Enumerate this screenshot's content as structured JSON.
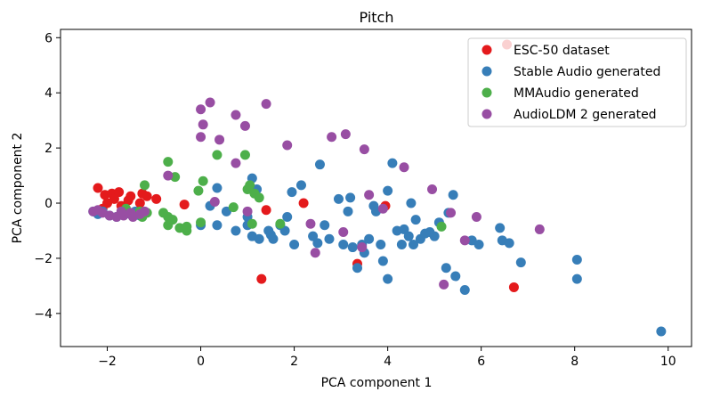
{
  "chart_data": {
    "type": "scatter",
    "title": "Pitch",
    "xlabel": "PCA component 1",
    "ylabel": "PCA component 2",
    "xlim": [
      -3.0,
      10.5
    ],
    "ylim": [
      -5.2,
      6.3
    ],
    "xticks": [
      -2,
      0,
      2,
      4,
      6,
      8,
      10
    ],
    "yticks": [
      -4,
      -2,
      0,
      2,
      4,
      6
    ],
    "xtick_labels": [
      "−2",
      "0",
      "2",
      "4",
      "6",
      "8",
      "10"
    ],
    "ytick_labels": [
      "−4",
      "−2",
      "0",
      "2",
      "4",
      "6"
    ],
    "grid": false,
    "legend_position": "top-right",
    "series": [
      {
        "name": "ESC-50 dataset",
        "color": "#e41a1c",
        "points": [
          [
            6.55,
            5.75
          ],
          [
            -2.2,
            0.55
          ],
          [
            -2.05,
            0.3
          ],
          [
            -1.9,
            0.35
          ],
          [
            -1.75,
            0.4
          ],
          [
            -1.85,
            0.15
          ],
          [
            -1.5,
            0.25
          ],
          [
            -1.25,
            0.35
          ],
          [
            -1.15,
            0.25
          ],
          [
            -0.95,
            0.15
          ],
          [
            -1.3,
            0.0
          ],
          [
            -1.55,
            0.1
          ],
          [
            -2.0,
            0.0
          ],
          [
            -0.35,
            -0.05
          ],
          [
            1.4,
            -0.25
          ],
          [
            2.2,
            0.0
          ],
          [
            3.95,
            -0.1
          ],
          [
            3.35,
            -2.2
          ],
          [
            1.3,
            -2.75
          ],
          [
            6.7,
            -3.05
          ],
          [
            -2.1,
            -0.2
          ],
          [
            -1.7,
            -0.1
          ]
        ]
      },
      {
        "name": "Stable Audio generated",
        "color": "#377eb8",
        "points": [
          [
            -2.3,
            -0.3
          ],
          [
            -2.2,
            -0.4
          ],
          [
            -2.1,
            -0.3
          ],
          [
            -1.95,
            -0.45
          ],
          [
            -1.8,
            -0.5
          ],
          [
            -1.65,
            -0.35
          ],
          [
            -1.5,
            -0.4
          ],
          [
            -1.4,
            -0.3
          ],
          [
            -1.3,
            -0.45
          ],
          [
            0.0,
            -0.8
          ],
          [
            0.2,
            -0.1
          ],
          [
            0.35,
            0.55
          ],
          [
            0.35,
            -0.8
          ],
          [
            0.75,
            -1.0
          ],
          [
            1.0,
            -0.8
          ],
          [
            1.1,
            -1.2
          ],
          [
            1.1,
            0.9
          ],
          [
            1.2,
            0.5
          ],
          [
            1.25,
            -1.3
          ],
          [
            1.45,
            -1.0
          ],
          [
            1.5,
            -1.15
          ],
          [
            1.55,
            -1.3
          ],
          [
            1.7,
            -0.8
          ],
          [
            1.8,
            -1.0
          ],
          [
            1.85,
            -0.5
          ],
          [
            1.95,
            0.4
          ],
          [
            2.0,
            -1.5
          ],
          [
            2.15,
            0.65
          ],
          [
            2.4,
            -1.2
          ],
          [
            2.5,
            -1.45
          ],
          [
            2.55,
            1.4
          ],
          [
            2.65,
            -0.8
          ],
          [
            2.75,
            -1.3
          ],
          [
            2.95,
            0.15
          ],
          [
            3.05,
            -1.5
          ],
          [
            3.15,
            -0.3
          ],
          [
            3.25,
            -1.6
          ],
          [
            3.35,
            -2.35
          ],
          [
            3.45,
            -1.5
          ],
          [
            3.5,
            -1.8
          ],
          [
            3.6,
            -1.3
          ],
          [
            3.7,
            -0.1
          ],
          [
            3.75,
            -0.3
          ],
          [
            3.85,
            -1.5
          ],
          [
            3.9,
            -2.1
          ],
          [
            4.0,
            0.45
          ],
          [
            4.0,
            -2.75
          ],
          [
            4.1,
            1.45
          ],
          [
            4.2,
            -1.0
          ],
          [
            4.3,
            -1.5
          ],
          [
            4.35,
            -0.95
          ],
          [
            4.45,
            -1.2
          ],
          [
            4.5,
            0.0
          ],
          [
            4.55,
            -1.5
          ],
          [
            4.6,
            -0.6
          ],
          [
            4.7,
            -1.3
          ],
          [
            4.8,
            -1.1
          ],
          [
            4.9,
            -1.05
          ],
          [
            5.0,
            -1.2
          ],
          [
            5.1,
            -0.7
          ],
          [
            5.25,
            -2.35
          ],
          [
            5.3,
            -0.35
          ],
          [
            5.4,
            0.3
          ],
          [
            5.45,
            -2.65
          ],
          [
            5.65,
            -3.15
          ],
          [
            5.8,
            -1.35
          ],
          [
            5.95,
            -1.5
          ],
          [
            6.4,
            -0.9
          ],
          [
            6.45,
            -1.35
          ],
          [
            6.6,
            -1.45
          ],
          [
            6.85,
            -2.15
          ],
          [
            8.05,
            -2.05
          ],
          [
            8.05,
            -2.75
          ],
          [
            9.85,
            -4.65
          ],
          [
            0.55,
            -0.3
          ],
          [
            1.0,
            -0.5
          ],
          [
            3.2,
            0.2
          ]
        ]
      },
      {
        "name": "MMAudio generated",
        "color": "#4daf4a",
        "points": [
          [
            -1.2,
            0.65
          ],
          [
            -1.6,
            -0.2
          ],
          [
            -1.3,
            -0.3
          ],
          [
            -1.25,
            -0.5
          ],
          [
            -1.15,
            -0.35
          ],
          [
            -0.7,
            1.5
          ],
          [
            -0.7,
            -0.5
          ],
          [
            -0.7,
            -0.8
          ],
          [
            -0.6,
            -0.6
          ],
          [
            -0.55,
            0.95
          ],
          [
            -0.45,
            -0.9
          ],
          [
            -0.3,
            -1.0
          ],
          [
            -0.3,
            -0.85
          ],
          [
            -0.05,
            0.45
          ],
          [
            0.0,
            -0.7
          ],
          [
            0.05,
            0.8
          ],
          [
            0.35,
            1.75
          ],
          [
            0.7,
            -0.15
          ],
          [
            0.95,
            1.75
          ],
          [
            1.0,
            0.5
          ],
          [
            1.05,
            0.65
          ],
          [
            1.1,
            -0.75
          ],
          [
            1.15,
            0.35
          ],
          [
            1.25,
            0.2
          ],
          [
            1.7,
            -0.75
          ],
          [
            5.15,
            -0.85
          ],
          [
            -0.8,
            -0.35
          ]
        ]
      },
      {
        "name": "AudioLDM 2 generated",
        "color": "#984ea3",
        "points": [
          [
            -2.3,
            -0.3
          ],
          [
            -2.1,
            -0.35
          ],
          [
            -1.95,
            -0.45
          ],
          [
            -1.8,
            -0.5
          ],
          [
            -1.65,
            -0.45
          ],
          [
            -1.5,
            -0.35
          ],
          [
            -1.45,
            -0.5
          ],
          [
            -1.3,
            -0.4
          ],
          [
            -1.2,
            -0.3
          ],
          [
            -2.2,
            -0.25
          ],
          [
            -1.7,
            -0.3
          ],
          [
            -0.7,
            1.0
          ],
          [
            0.0,
            3.4
          ],
          [
            0.05,
            2.85
          ],
          [
            0.0,
            2.4
          ],
          [
            0.2,
            3.65
          ],
          [
            0.3,
            0.05
          ],
          [
            0.4,
            2.3
          ],
          [
            0.75,
            1.45
          ],
          [
            0.75,
            3.2
          ],
          [
            0.95,
            2.8
          ],
          [
            1.0,
            -0.3
          ],
          [
            1.4,
            3.6
          ],
          [
            1.85,
            2.1
          ],
          [
            2.35,
            -0.75
          ],
          [
            2.45,
            -1.8
          ],
          [
            2.8,
            2.4
          ],
          [
            3.1,
            2.5
          ],
          [
            3.05,
            -1.05
          ],
          [
            3.45,
            -1.6
          ],
          [
            3.5,
            1.95
          ],
          [
            3.6,
            0.3
          ],
          [
            3.9,
            -0.2
          ],
          [
            4.35,
            1.3
          ],
          [
            4.95,
            0.5
          ],
          [
            5.2,
            -2.95
          ],
          [
            5.35,
            -0.35
          ],
          [
            5.65,
            -1.35
          ],
          [
            5.9,
            -0.5
          ],
          [
            7.25,
            -0.95
          ]
        ]
      }
    ]
  }
}
